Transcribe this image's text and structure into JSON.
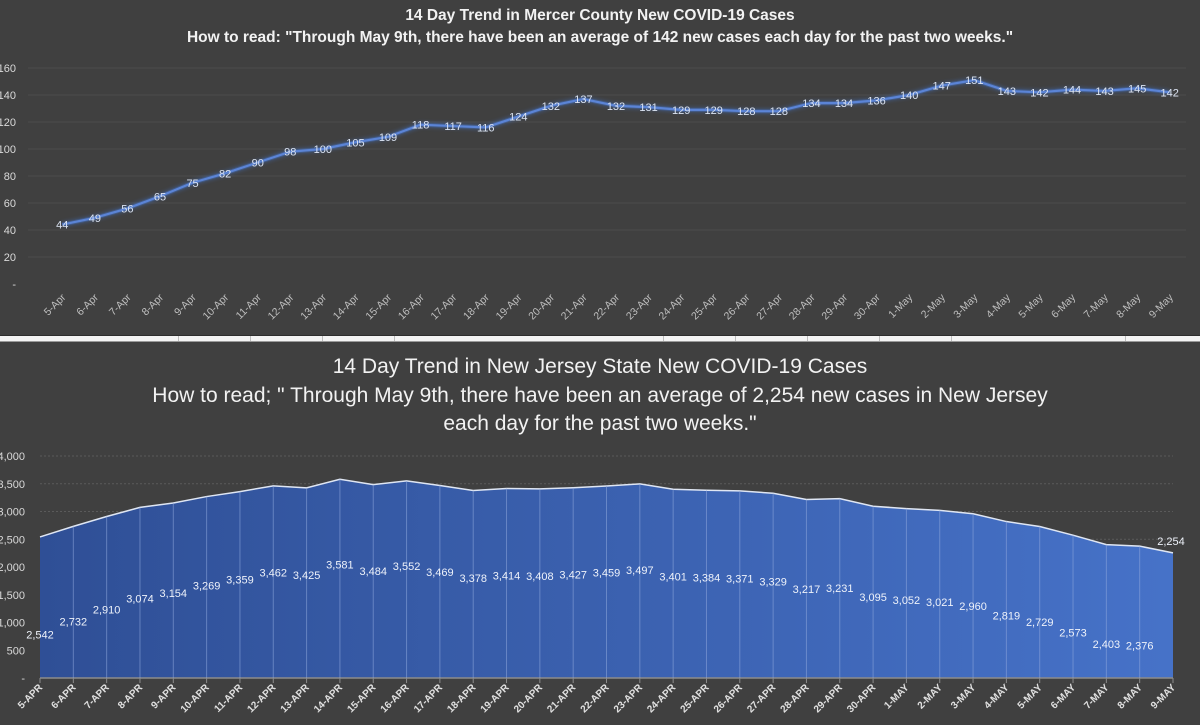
{
  "chart_data": [
    {
      "type": "line",
      "title": "14 Day Trend in Mercer County New COVID-19 Cases",
      "subtitle": "How to read: \"Through May 9th, there have been an average of 142 new cases each day for the past two weeks.\"",
      "xlabel": "",
      "ylabel": "",
      "ylim": [
        0,
        160
      ],
      "yticks": [
        "-",
        "20",
        "40",
        "60",
        "80",
        "100",
        "120",
        "140",
        "160"
      ],
      "grid": true,
      "line_color": "#4472c4",
      "categories": [
        "5-Apr",
        "6-Apr",
        "7-Apr",
        "8-Apr",
        "9-Apr",
        "10-Apr",
        "11-Apr",
        "12-Apr",
        "13-Apr",
        "14-Apr",
        "15-Apr",
        "16-Apr",
        "17-Apr",
        "18-Apr",
        "19-Apr",
        "20-Apr",
        "21-Apr",
        "22-Apr",
        "23-Apr",
        "24-Apr",
        "25-Apr",
        "26-Apr",
        "27-Apr",
        "28-Apr",
        "29-Apr",
        "30-Apr",
        "1-May",
        "2-May",
        "3-May",
        "4-May",
        "5-May",
        "6-May",
        "7-May",
        "8-May",
        "9-May"
      ],
      "values": [
        44,
        49,
        56,
        65,
        75,
        82,
        90,
        98,
        100,
        105,
        109,
        118,
        117,
        116,
        124,
        132,
        137,
        132,
        131,
        129,
        129,
        128,
        128,
        134,
        134,
        136,
        140,
        147,
        151,
        143,
        142,
        144,
        143,
        145,
        142
      ],
      "data_labels": [
        "44",
        "49",
        "56",
        "65",
        "75",
        "82",
        "90",
        "98",
        "100",
        "105",
        "109",
        "118",
        "117",
        "116",
        "124",
        "132",
        "137",
        "132",
        "131",
        "129",
        "129",
        "128",
        "128",
        "134",
        "134",
        "136",
        "140",
        "147",
        "151",
        "143",
        "142",
        "144",
        "143",
        "145",
        "142"
      ]
    },
    {
      "type": "area",
      "title": "14 Day Trend in New Jersey State New COVID-19 Cases",
      "subtitle_lines": [
        "How to read; \" Through May 9th, there have been an average of 2,254 new cases in New Jersey",
        "each day for the past two weeks.\""
      ],
      "xlabel": "",
      "ylabel": "",
      "ylim": [
        0,
        4000
      ],
      "yticks": [
        "-",
        "500",
        "1,000",
        "1,500",
        "2,000",
        "2,500",
        "3,000",
        "3,500",
        "4,000"
      ],
      "grid": true,
      "fill_color": "#4472c4",
      "categories": [
        "5-APR",
        "6-APR",
        "7-APR",
        "8-APR",
        "9-APR",
        "10-APR",
        "11-APR",
        "12-APR",
        "13-APR",
        "14-APR",
        "15-APR",
        "16-APR",
        "17-APR",
        "18-APR",
        "19-APR",
        "20-APR",
        "21-APR",
        "22-APR",
        "23-APR",
        "24-APR",
        "25-APR",
        "26-APR",
        "27-APR",
        "28-APR",
        "29-APR",
        "30-APR",
        "1-MAY",
        "2-MAY",
        "3-MAY",
        "4-MAY",
        "5-MAY",
        "6-MAY",
        "7-MAY",
        "8-MAY",
        "9-MAY"
      ],
      "values": [
        2542,
        2732,
        2910,
        3074,
        3154,
        3269,
        3359,
        3462,
        3425,
        3581,
        3484,
        3552,
        3469,
        3378,
        3414,
        3408,
        3427,
        3459,
        3497,
        3401,
        3384,
        3371,
        3329,
        3217,
        3231,
        3095,
        3052,
        3021,
        2960,
        2819,
        2729,
        2573,
        2403,
        2376,
        2254
      ],
      "data_labels": [
        "2,542",
        "2,732",
        "2,910",
        "3,074",
        "3,154",
        "3,269",
        "3,359",
        "3,462",
        "3,425",
        "3,581",
        "3,484",
        "3,552",
        "3,469",
        "3,378",
        "3,414",
        "3,408",
        "3,427",
        "3,459",
        "3,497",
        "3,401",
        "3,384",
        "3,371",
        "3,329",
        "3,217",
        "3,231",
        "3,095",
        "3,052",
        "3,021",
        "2,960",
        "2,819",
        "2,729",
        "2,573",
        "2,403",
        "2,376",
        "2,254"
      ]
    }
  ]
}
